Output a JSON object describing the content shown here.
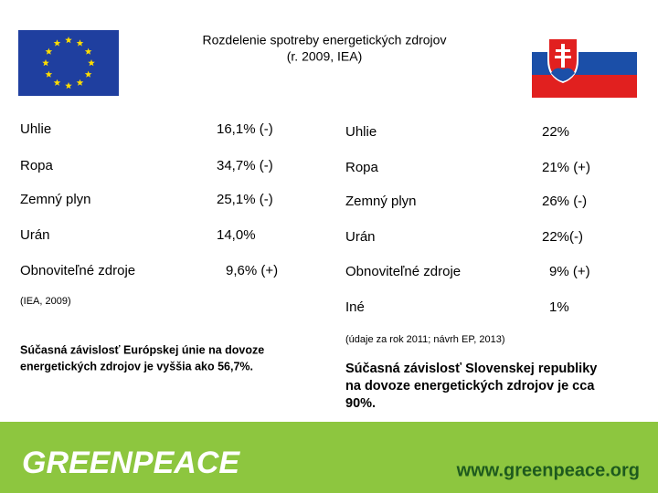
{
  "header": {
    "title_lines": [
      "Rozdelenie spotreby energetických zdrojov",
      "(r. 2009, IEA)"
    ]
  },
  "left": {
    "rows": [
      [
        "Uhlie",
        "16,1% (-)"
      ],
      [
        "Ropa",
        "34,7%  (-)"
      ],
      [
        "Zemný plyn",
        "25,1% (-)"
      ],
      [
        "Urán",
        "14,0%"
      ],
      [
        "Obnoviteľné zdroje",
        "9,6% (+)"
      ]
    ],
    "source": "(IEA, 2009)",
    "note_lines": [
      "Súčasná závislosť Európskej únie na dovoze",
      "energetických zdrojov je vyššia ako 56,7%."
    ]
  },
  "right": {
    "rows": [
      [
        "Uhlie",
        "22%"
      ],
      [
        "Ropa",
        "21% (+)"
      ],
      [
        "Zemný plyn",
        "26% (-)"
      ],
      [
        "Urán",
        "22%(-)"
      ],
      [
        "Obnoviteľné zdroje",
        "9% (+)"
      ],
      [
        "Iné",
        "1%"
      ]
    ],
    "source": "(údaje za rok 2011; návrh EP, 2013)",
    "note_lines": [
      "Súčasná závislosť Slovenskej republiky",
      "na dovoze energetických zdrojov je cca",
      "90%."
    ]
  },
  "footer": {
    "logo": "GREENPEACE",
    "url": "www.greenpeace.org"
  }
}
